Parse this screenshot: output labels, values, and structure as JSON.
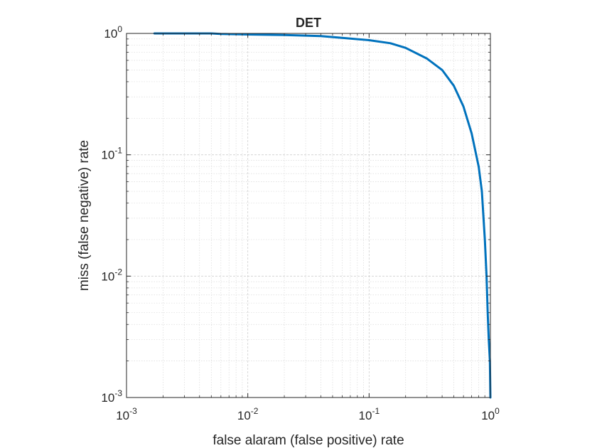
{
  "chart_data": {
    "type": "line",
    "title": "DET",
    "xlabel": "false alaram (false positive) rate",
    "ylabel": "miss (false negative) rate",
    "xscale": "log",
    "yscale": "log",
    "xlim": [
      0.001,
      1
    ],
    "ylim": [
      0.001,
      1
    ],
    "grid": true,
    "minor_grid": true,
    "legend": "none",
    "x_ticks": [
      {
        "value": 0.001,
        "base": "10",
        "exp": "-3"
      },
      {
        "value": 0.01,
        "base": "10",
        "exp": "-2"
      },
      {
        "value": 0.1,
        "base": "10",
        "exp": "-1"
      },
      {
        "value": 1,
        "base": "10",
        "exp": "0"
      }
    ],
    "y_ticks": [
      {
        "value": 0.001,
        "base": "10",
        "exp": "-3"
      },
      {
        "value": 0.01,
        "base": "10",
        "exp": "-2"
      },
      {
        "value": 0.1,
        "base": "10",
        "exp": "-1"
      },
      {
        "value": 1,
        "base": "10",
        "exp": "0"
      }
    ],
    "series": [
      {
        "color": "#0072BD",
        "points": [
          [
            0.0017,
            1.0
          ],
          [
            0.005,
            1.0
          ],
          [
            0.006,
            0.99
          ],
          [
            0.01,
            0.98
          ],
          [
            0.02,
            0.97
          ],
          [
            0.04,
            0.95
          ],
          [
            0.06,
            0.92
          ],
          [
            0.1,
            0.88
          ],
          [
            0.15,
            0.83
          ],
          [
            0.2,
            0.76
          ],
          [
            0.3,
            0.62
          ],
          [
            0.4,
            0.5
          ],
          [
            0.5,
            0.37
          ],
          [
            0.6,
            0.25
          ],
          [
            0.7,
            0.15
          ],
          [
            0.8,
            0.08
          ],
          [
            0.85,
            0.05
          ],
          [
            0.9,
            0.02
          ],
          [
            0.93,
            0.01
          ],
          [
            0.95,
            0.005
          ],
          [
            0.97,
            0.003
          ],
          [
            0.99,
            0.002
          ],
          [
            1.0,
            0.001
          ]
        ]
      }
    ]
  }
}
